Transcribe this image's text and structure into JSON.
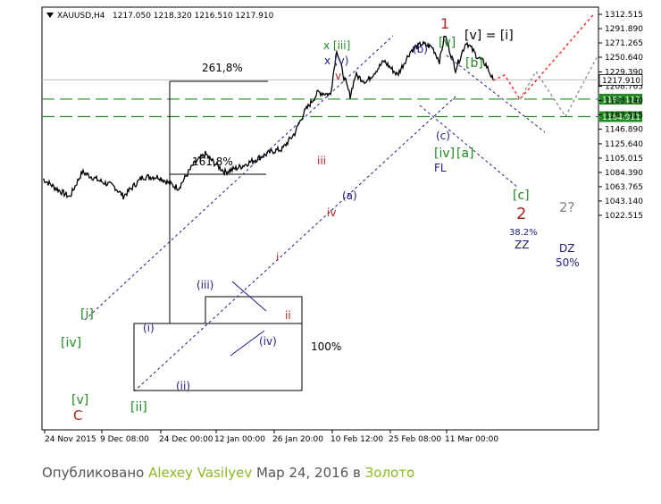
{
  "header": {
    "symbol": "XAUUSD,H4",
    "ohlc": "1217.050 1218.320 1216.510 1217.910"
  },
  "chart_data": {
    "type": "candlestick",
    "symbol": "XAUUSD",
    "timeframe": "H4",
    "current_price": 1217.91,
    "ylim": [
      1015,
      1318
    ],
    "y_ticks": [
      1312.515,
      1291.89,
      1271.265,
      1250.64,
      1229.39,
      1208.765,
      1188.14,
      1167.515,
      1146.89,
      1125.64,
      1105.015,
      1084.39,
      1063.765,
      1043.14,
      1022.515
    ],
    "x_ticks": [
      "24 Nov 2015",
      "9 Dec 08:00",
      "24 Dec 00:00",
      "12 Jan 00:00",
      "26 Jan 20:00",
      "10 Feb 12:00",
      "25 Feb 08:00",
      "11 Mar 00:00"
    ],
    "price_path": [
      [
        "24 Nov 2015",
        1075
      ],
      [
        "30 Nov",
        1062
      ],
      [
        "2 Dec",
        1049
      ],
      [
        "5 Dec",
        1085
      ],
      [
        "9 Dec",
        1072
      ],
      [
        "14 Dec",
        1064
      ],
      [
        "17 Dec",
        1050
      ],
      [
        "21 Dec",
        1078
      ],
      [
        "24 Dec",
        1078
      ],
      [
        "28 Dec",
        1068
      ],
      [
        "31 Dec",
        1062
      ],
      [
        "5 Jan",
        1095
      ],
      [
        "7 Jan",
        1111
      ],
      [
        "12 Jan",
        1098
      ],
      [
        "14 Jan",
        1085
      ],
      [
        "18 Jan",
        1092
      ],
      [
        "22 Jan",
        1103
      ],
      [
        "26 Jan",
        1115
      ],
      [
        "29 Jan",
        1118
      ],
      [
        "1 Feb",
        1128
      ],
      [
        "3 Feb",
        1141
      ],
      [
        "5 Feb",
        1170
      ],
      [
        "8 Feb",
        1200
      ],
      [
        "10 Feb",
        1197
      ],
      [
        "11 Feb",
        1262
      ],
      [
        "13 Feb",
        1222
      ],
      [
        "16 Feb",
        1195
      ],
      [
        "18 Feb",
        1225
      ],
      [
        "22 Feb",
        1215
      ],
      [
        "24 Feb",
        1245
      ],
      [
        "26 Feb",
        1225
      ],
      [
        "1 Mar",
        1260
      ],
      [
        "3 Mar",
        1270
      ],
      [
        "7 Mar",
        1265
      ],
      [
        "10 Mar",
        1245
      ],
      [
        "11 Mar",
        1283
      ],
      [
        "14 Mar",
        1233
      ],
      [
        "17 Mar",
        1273
      ],
      [
        "20 Mar",
        1252
      ],
      [
        "23 Mar",
        1240
      ],
      [
        "24 Mar",
        1217.9
      ]
    ],
    "horizontal_levels": [
      {
        "price": 1190.112,
        "label": "1190.112",
        "style": "dashed",
        "color": "#228b22"
      },
      {
        "price": 1164.911,
        "label": "1164.911",
        "style": "dashed",
        "color": "#228b22"
      }
    ],
    "fibonacci_labels": [
      "261,8%",
      "161.8%",
      "100%"
    ],
    "wave_labels": [
      {
        "text": "[iv]",
        "color": "#228b22",
        "price": 1082
      },
      {
        "text": "[v]",
        "color": "#228b22",
        "price": 1050
      },
      {
        "text": "C",
        "color": "#b22222",
        "price": 1050
      },
      {
        "text": "[i]",
        "color": "#228b22",
        "price": 1102
      },
      {
        "text": "[ii]",
        "color": "#228b22",
        "price": 1050
      },
      {
        "text": "(i)",
        "color": "#1c1c8b",
        "price": 1086
      },
      {
        "text": "(ii)",
        "color": "#1c1c8b",
        "price": 1050
      },
      {
        "text": "(iii)",
        "color": "#1c1c8b",
        "price": 1111
      },
      {
        "text": "(iv)",
        "color": "#1c1c8b",
        "price": 1085
      },
      {
        "text": "i",
        "color": "#b22222",
        "price": 1097
      },
      {
        "text": "ii",
        "color": "#b22222",
        "price": 1104
      },
      {
        "text": "iii",
        "color": "#b22222",
        "price": 1200
      },
      {
        "text": "iv",
        "color": "#b22222",
        "price": 1195
      },
      {
        "text": "v",
        "color": "#b22222",
        "price": 1262
      },
      {
        "text": "x [iii]",
        "color": "#228b22",
        "price": 1262
      },
      {
        "text": "x (v)",
        "color": "#1c1c8b",
        "price": 1262
      },
      {
        "text": "(a)",
        "color": "#1c1c8b",
        "price": 1195
      },
      {
        "text": "(b)",
        "color": "#1c1c8b",
        "price": 1270
      },
      {
        "text": "(c)",
        "color": "#1c1c8b",
        "price": 1225
      },
      {
        "text": "[iv]",
        "color": "#228b22",
        "price": 1225
      },
      {
        "text": "FL",
        "color": "#1c1c8b",
        "price": 1225
      },
      {
        "text": "[v]",
        "color": "#228b22",
        "price": 1283
      },
      {
        "text": "1",
        "color": "#b22222",
        "price": 1283
      },
      {
        "text": "[a]",
        "color": "#228b22",
        "price": 1233
      },
      {
        "text": "[b]",
        "color": "#228b22",
        "price": 1273
      },
      {
        "text": "[c]",
        "color": "#228b22",
        "price": 1190
      },
      {
        "text": "2",
        "color": "#b22222",
        "price": 1190
      },
      {
        "text": "38.2%",
        "color": "#1c1c8b",
        "price": 1190
      },
      {
        "text": "ZZ",
        "color": "#1c1c8b",
        "price": 1190
      },
      {
        "text": "2?",
        "color": "#808080",
        "price": 1165
      },
      {
        "text": "DZ",
        "color": "#1c1c8b",
        "price": 1165
      },
      {
        "text": "50%",
        "color": "#1c1c8b",
        "price": 1165
      }
    ],
    "annotation": "[v] = [i]",
    "forecast_paths": [
      {
        "style": "dotted",
        "color": "#ff0000",
        "prices": [
          1217,
          1225,
          1190,
          1313
        ]
      },
      {
        "style": "dotted",
        "color": "#808080",
        "prices": [
          1190,
          1230,
          1165,
          1250
        ]
      }
    ]
  },
  "footer": {
    "prefix": "Опубликовано",
    "author": "Alexey Vasilyev",
    "date": "Мар 24, 2016",
    "preposition": "в",
    "category": "Золото"
  }
}
